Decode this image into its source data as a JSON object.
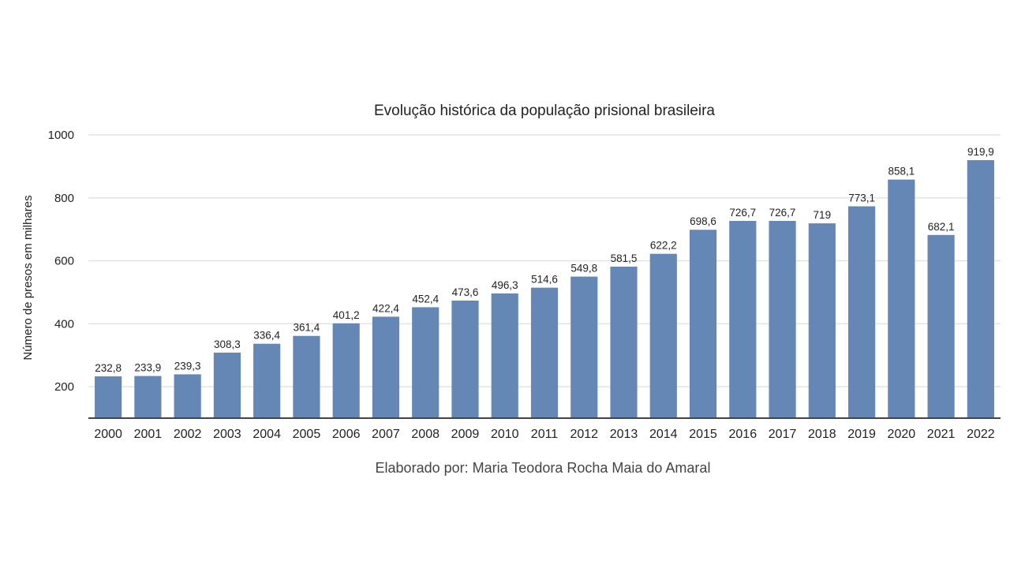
{
  "chart_data": {
    "type": "bar",
    "title": "Evolução histórica da população prisional brasileira",
    "xlabel": "",
    "ylabel": "Número de presos em milhares",
    "categories": [
      "2000",
      "2001",
      "2002",
      "2003",
      "2004",
      "2005",
      "2006",
      "2007",
      "2008",
      "2009",
      "2010",
      "2011",
      "2012",
      "2013",
      "2014",
      "2015",
      "2016",
      "2017",
      "2018",
      "2019",
      "2020",
      "2021",
      "2022"
    ],
    "values": [
      232.8,
      233.9,
      239.3,
      308.3,
      336.4,
      361.4,
      401.2,
      422.4,
      452.4,
      473.6,
      496.3,
      514.6,
      549.8,
      581.5,
      622.2,
      698.6,
      726.7,
      726.7,
      719,
      773.1,
      858.1,
      682.1,
      919.9
    ],
    "value_labels": [
      "232,8",
      "233,9",
      "239,3",
      "308,3",
      "336,4",
      "361,4",
      "401,2",
      "422,4",
      "452,4",
      "473,6",
      "496,3",
      "514,6",
      "549,8",
      "581,5",
      "622,2",
      "698,6",
      "726,7",
      "726,7",
      "719",
      "773,1",
      "858,1",
      "682,1",
      "919,9"
    ],
    "ylim": [
      100,
      1000
    ],
    "yticks": [
      200,
      400,
      600,
      800,
      1000
    ],
    "ytick_labels": [
      "200",
      "400",
      "600",
      "800",
      "1000"
    ],
    "grid": true,
    "bar_color": "#6587b6",
    "caption": "Elaborado por: Maria Teodora Rocha Maia do Amaral"
  }
}
